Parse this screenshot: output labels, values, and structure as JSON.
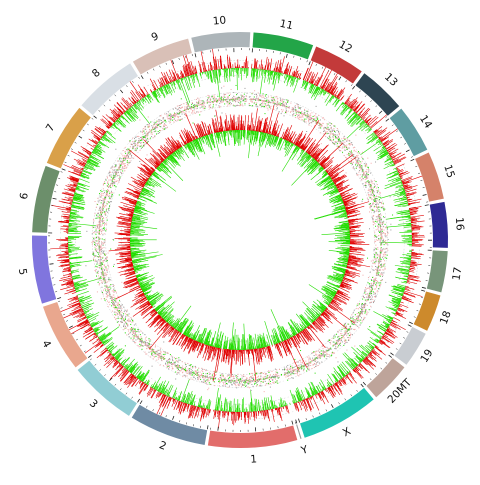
{
  "chromosomes": [
    {
      "label": "1",
      "color": "#e26d6b",
      "size": 158
    },
    {
      "label": "2",
      "color": "#6f8ba4",
      "size": 137
    },
    {
      "label": "3",
      "color": "#91cdd4",
      "size": 121
    },
    {
      "label": "4",
      "color": "#e9a78e",
      "size": 121
    },
    {
      "label": "5",
      "color": "#8075de",
      "size": 121
    },
    {
      "label": "6",
      "color": "#6c8f6b",
      "size": 119
    },
    {
      "label": "7",
      "color": "#d9a049",
      "size": 112
    },
    {
      "label": "8",
      "color": "#d9dfe5",
      "size": 113
    },
    {
      "label": "9",
      "color": "#d9c0b7",
      "size": 105
    },
    {
      "label": "10",
      "color": "#adb5b9",
      "size": 104
    },
    {
      "label": "11",
      "color": "#23a548",
      "size": 107
    },
    {
      "label": "12",
      "color": "#c33a3a",
      "size": 91
    },
    {
      "label": "13",
      "color": "#2e4552",
      "size": 84
    },
    {
      "label": "14",
      "color": "#5f9da2",
      "size": 85
    },
    {
      "label": "15",
      "color": "#d5826a",
      "size": 85
    },
    {
      "label": "16",
      "color": "#2e2a94",
      "size": 81
    },
    {
      "label": "17",
      "color": "#78957a",
      "size": 73
    },
    {
      "label": "18",
      "color": "#cd8a2c",
      "size": 66
    },
    {
      "label": "19",
      "color": "#c9cdd2",
      "size": 64
    },
    {
      "label": "20MT",
      "color": "#bea49a",
      "size": 72
    },
    {
      "label": "X",
      "color": "#1fc4b2",
      "size": 139
    },
    {
      "label": "Y",
      "color": "#9a9a9a",
      "size": 2
    }
  ],
  "track_colors": {
    "high": "#e00000",
    "low": "#22dd00",
    "mid_light": "#f3aaaa",
    "mid_dark": "#999999",
    "axis_line": "#bbbbbb"
  }
}
